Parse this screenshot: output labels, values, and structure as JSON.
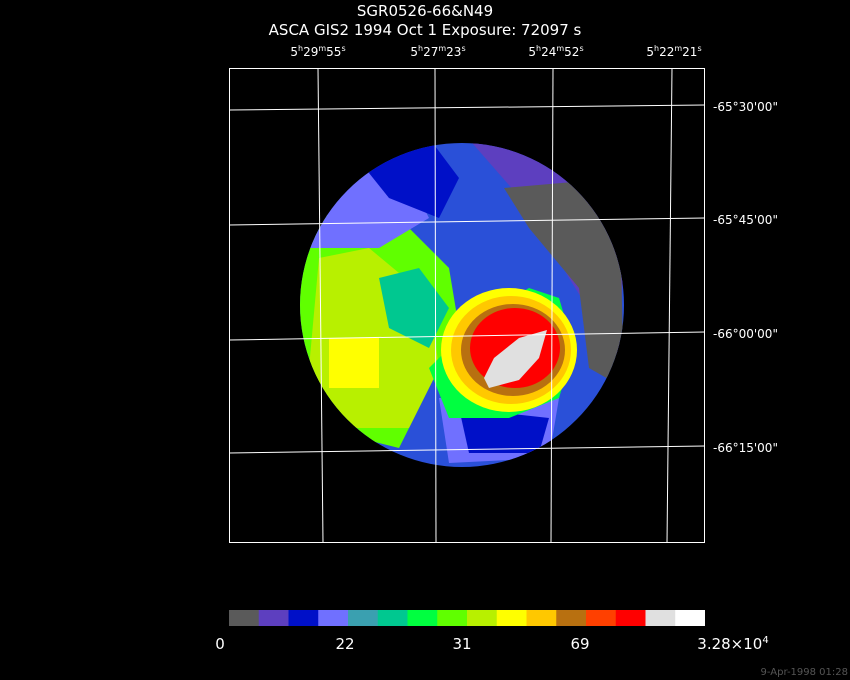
{
  "header": {
    "title": "SGR0526-66&N49",
    "subtitle": "ASCA GIS2    1994 Oct  1     Exposure: 72097 s"
  },
  "axes": {
    "ra_ticks": [
      {
        "h": "5",
        "m": "29",
        "s": "55"
      },
      {
        "h": "5",
        "m": "27",
        "s": "23"
      },
      {
        "h": "5",
        "m": "24",
        "s": "52"
      },
      {
        "h": "5",
        "m": "22",
        "s": "21"
      }
    ],
    "dec_ticks": [
      "-65°30'00\"",
      "-65°45'00\"",
      "-66°00'00\"",
      "-66°15'00\""
    ]
  },
  "colorbar": {
    "colors": [
      "#5a5a5a",
      "#5d3fbf",
      "#0010c8",
      "#7070ff",
      "#3aa0b0",
      "#00c890",
      "#00ff40",
      "#60ff00",
      "#b8f000",
      "#ffff00",
      "#ffc800",
      "#b87010",
      "#ff4000",
      "#ff0000",
      "#e0e0e0",
      "#ffffff"
    ],
    "labels": [
      "0",
      "22",
      "31",
      "69",
      "3.28×10"
    ],
    "last_exponent": "4"
  },
  "stamp": "9-Apr-1998 01:28"
}
